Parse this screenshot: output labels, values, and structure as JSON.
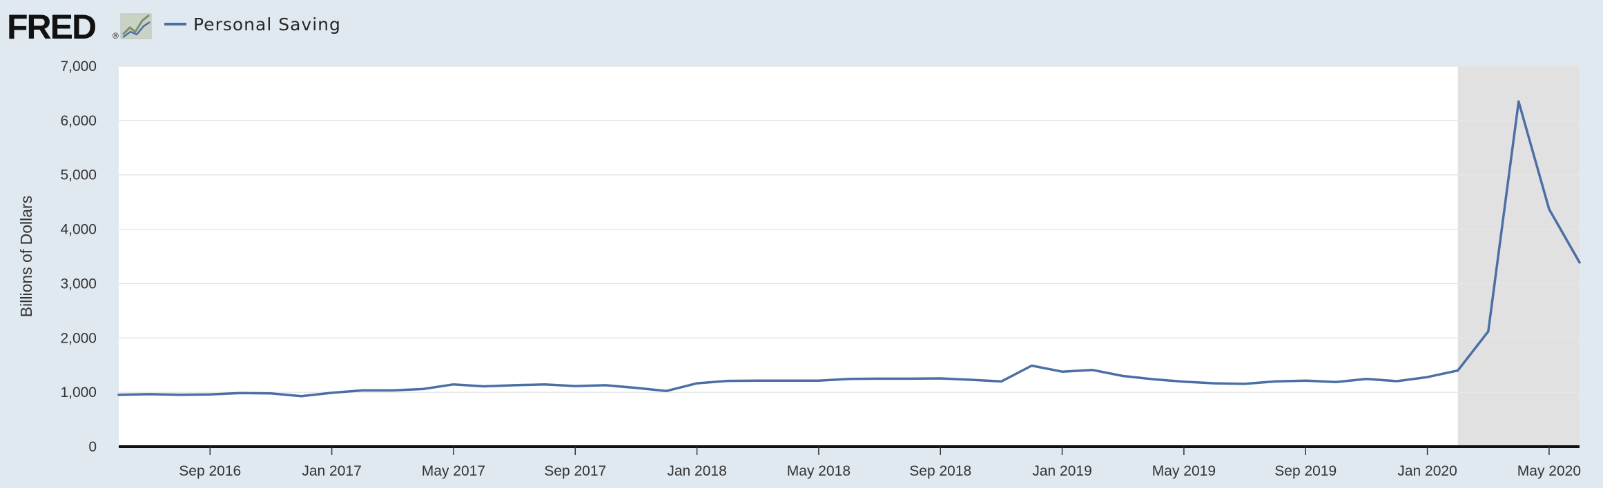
{
  "header": {
    "logo_text": "FRED",
    "logo_mark": "®",
    "logo_icon": "fred-graph-icon",
    "legend_label": "Personal Saving"
  },
  "colors": {
    "page_bg": "#e1e9f0",
    "plot_bg": "#ffffff",
    "series": "#4b6fa5",
    "recession": "#e1e1e1",
    "grid": "#e6e6e6"
  },
  "chart_data": {
    "type": "line",
    "title": "",
    "xlabel": "",
    "ylabel": "Billions of Dollars",
    "ylim": [
      0,
      7000
    ],
    "yticks": [
      0,
      1000,
      2000,
      3000,
      4000,
      5000,
      6000,
      7000
    ],
    "ytick_labels": [
      "0",
      "1,000",
      "2,000",
      "3,000",
      "4,000",
      "5,000",
      "6,000",
      "7,000"
    ],
    "xlim": [
      "2016-06",
      "2020-06"
    ],
    "xticks": [
      "2016-09",
      "2017-01",
      "2017-05",
      "2017-09",
      "2018-01",
      "2018-05",
      "2018-09",
      "2019-01",
      "2019-05",
      "2019-09",
      "2020-01",
      "2020-05"
    ],
    "xtick_labels": [
      "Sep 2016",
      "Jan 2017",
      "May 2017",
      "Sep 2017",
      "Jan 2018",
      "May 2018",
      "Sep 2018",
      "Jan 2019",
      "May 2019",
      "Sep 2019",
      "Jan 2020",
      "May 2020"
    ],
    "grid": true,
    "legend": "top-left",
    "recession_shading": [
      {
        "start": "2020-02",
        "end": "2020-06"
      }
    ],
    "series": [
      {
        "name": "Personal Saving",
        "x": [
          "2016-06",
          "2016-07",
          "2016-08",
          "2016-09",
          "2016-10",
          "2016-11",
          "2016-12",
          "2017-01",
          "2017-02",
          "2017-03",
          "2017-04",
          "2017-05",
          "2017-06",
          "2017-07",
          "2017-08",
          "2017-09",
          "2017-10",
          "2017-11",
          "2017-12",
          "2018-01",
          "2018-02",
          "2018-03",
          "2018-04",
          "2018-05",
          "2018-06",
          "2018-07",
          "2018-08",
          "2018-09",
          "2018-10",
          "2018-11",
          "2018-12",
          "2019-01",
          "2019-02",
          "2019-03",
          "2019-04",
          "2019-05",
          "2019-06",
          "2019-07",
          "2019-08",
          "2019-09",
          "2019-10",
          "2019-11",
          "2019-12",
          "2020-01",
          "2020-02",
          "2020-03",
          "2020-04",
          "2020-05",
          "2020-06"
        ],
        "values": [
          955,
          965,
          955,
          960,
          985,
          980,
          930,
          990,
          1035,
          1035,
          1060,
          1145,
          1110,
          1130,
          1145,
          1115,
          1130,
          1080,
          1025,
          1165,
          1210,
          1215,
          1215,
          1215,
          1245,
          1250,
          1250,
          1255,
          1230,
          1200,
          1490,
          1380,
          1410,
          1300,
          1240,
          1195,
          1165,
          1155,
          1200,
          1215,
          1190,
          1245,
          1205,
          1280,
          1400,
          2120,
          6350,
          4370,
          3390
        ]
      }
    ]
  }
}
